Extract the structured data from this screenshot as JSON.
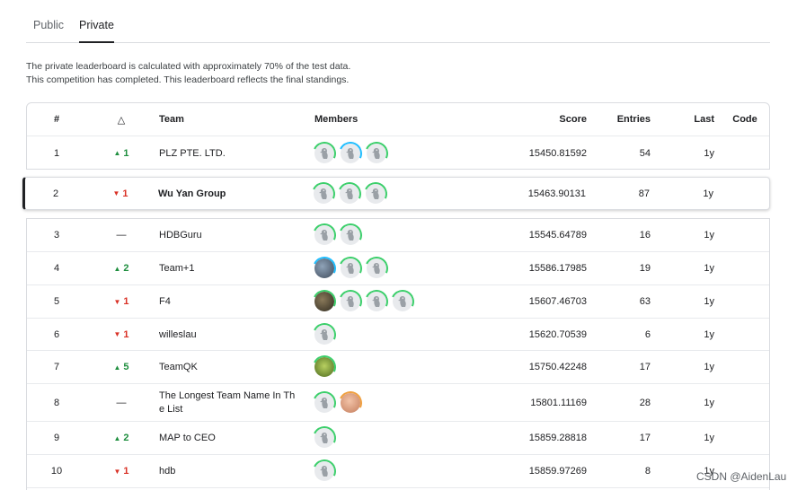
{
  "tabs": {
    "public": "Public",
    "private": "Private"
  },
  "description": {
    "line1": "The private leaderboard is calculated with approximately 70% of the test data.",
    "line2": "This competition has completed. This leaderboard reflects the final standings."
  },
  "headers": {
    "rank": "#",
    "delta": "△",
    "team": "Team",
    "members": "Members",
    "score": "Score",
    "entries": "Entries",
    "last": "Last",
    "code": "Code"
  },
  "rows": [
    {
      "rank": "1",
      "delta": "1",
      "dir": "up",
      "team": "PLZ PTE. LTD.",
      "score": "15450.81592",
      "entries": "54",
      "last": "1y"
    },
    {
      "rank": "2",
      "delta": "1",
      "dir": "down",
      "team": "Wu Yan Group",
      "score": "15463.90131",
      "entries": "87",
      "last": "1y"
    },
    {
      "rank": "3",
      "delta": "—",
      "dir": "none",
      "team": "HDBGuru",
      "score": "15545.64789",
      "entries": "16",
      "last": "1y"
    },
    {
      "rank": "4",
      "delta": "2",
      "dir": "up",
      "team": "Team+1",
      "score": "15586.17985",
      "entries": "19",
      "last": "1y"
    },
    {
      "rank": "5",
      "delta": "1",
      "dir": "down",
      "team": "F4",
      "score": "15607.46703",
      "entries": "63",
      "last": "1y"
    },
    {
      "rank": "6",
      "delta": "1",
      "dir": "down",
      "team": "willeslau",
      "score": "15620.70539",
      "entries": "6",
      "last": "1y"
    },
    {
      "rank": "7",
      "delta": "5",
      "dir": "up",
      "team": "TeamQK",
      "score": "15750.42248",
      "entries": "17",
      "last": "1y"
    },
    {
      "rank": "8",
      "delta": "—",
      "dir": "none",
      "team_line1": "The Longest Team Name In Th",
      "team_line2": "e List",
      "score": "15801.11169",
      "entries": "28",
      "last": "1y"
    },
    {
      "rank": "9",
      "delta": "2",
      "dir": "up",
      "team": "MAP to CEO",
      "score": "15859.28818",
      "entries": "17",
      "last": "1y"
    },
    {
      "rank": "10",
      "delta": "1",
      "dir": "down",
      "team": "hdb",
      "score": "15859.97269",
      "entries": "8",
      "last": "1y"
    }
  ],
  "members": {
    "r1": [
      "goose-avatar",
      "goose-avatar",
      "goose-avatar"
    ],
    "r2": [
      "goose-avatar",
      "goose-avatar",
      "goose-avatar"
    ],
    "r3": [
      "goose-avatar",
      "goose-avatar"
    ],
    "r4": [
      "photo-avatar",
      "goose-avatar",
      "goose-avatar"
    ],
    "r5": [
      "photo-avatar",
      "goose-avatar",
      "goose-avatar",
      "goose-avatar"
    ],
    "r6": [
      "goose-avatar"
    ],
    "r7": [
      "photo-avatar"
    ],
    "r8": [
      "goose-avatar",
      "photo-avatar"
    ],
    "r9": [
      "goose-avatar"
    ],
    "r10": [
      "goose-avatar"
    ]
  },
  "watermark": "CSDN @AidenLau",
  "colors": {
    "up": "#1e8e3e",
    "down": "#d93025",
    "accent": "#20beff",
    "tier": "#3ccf6b"
  }
}
